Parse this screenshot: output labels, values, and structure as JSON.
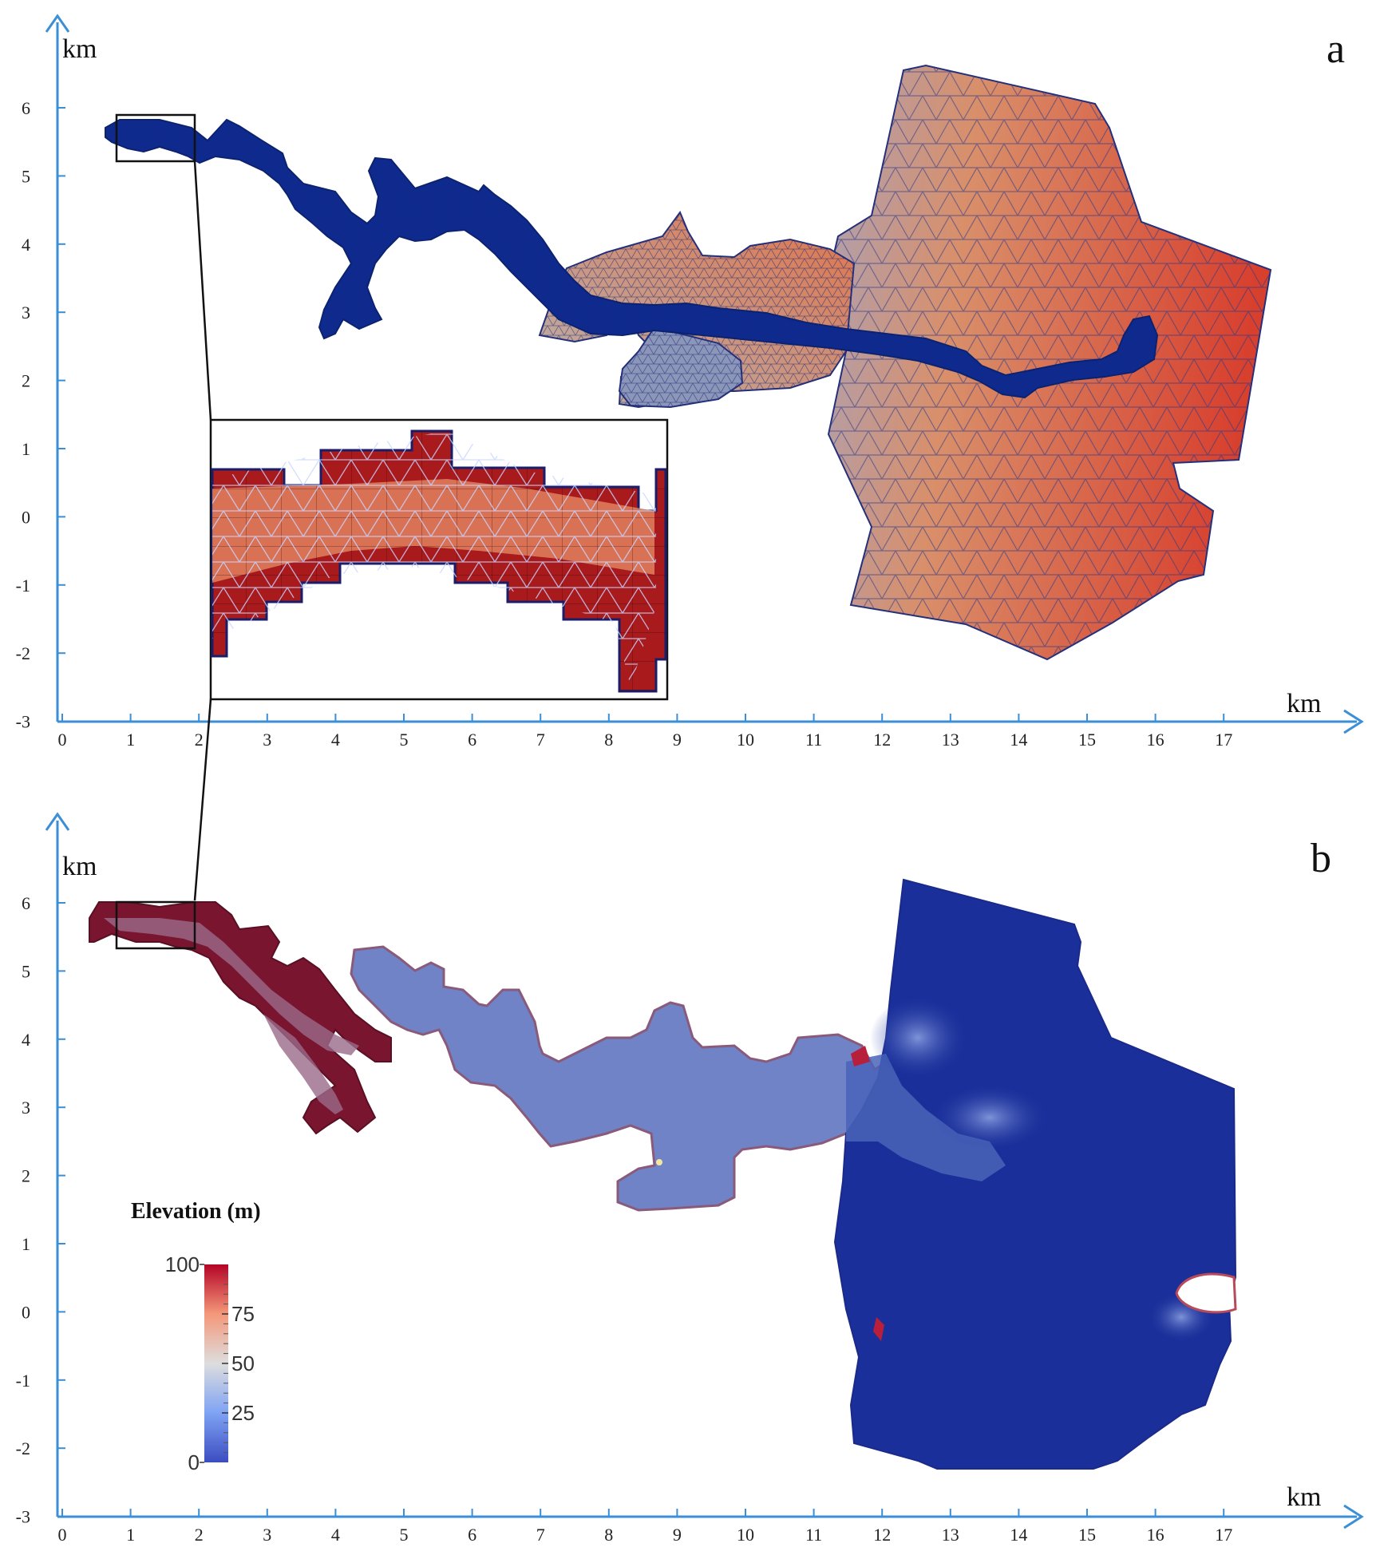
{
  "panel_a": {
    "letter": "a",
    "x_unit": "km",
    "y_unit": "km",
    "x_ticks": [
      "0",
      "1",
      "2",
      "3",
      "4",
      "5",
      "6",
      "7",
      "8",
      "9",
      "10",
      "11",
      "12",
      "13",
      "14",
      "15",
      "16",
      "17"
    ],
    "y_ticks": [
      "6",
      "5",
      "4",
      "3",
      "2",
      "1",
      "0",
      "-1",
      "-2",
      "-3"
    ]
  },
  "panel_b": {
    "letter": "b",
    "x_unit": "km",
    "y_unit": "km",
    "x_ticks": [
      "0",
      "1",
      "2",
      "3",
      "4",
      "5",
      "6",
      "7",
      "8",
      "9",
      "10",
      "11",
      "12",
      "13",
      "14",
      "15",
      "16",
      "17"
    ],
    "y_ticks": [
      "6",
      "5",
      "4",
      "3",
      "2",
      "1",
      "0",
      "-1",
      "-2",
      "-3"
    ]
  },
  "colorbar": {
    "title": "Elevation (m)",
    "labels": [
      "100",
      "75",
      "50",
      "25",
      "0"
    ],
    "range": [
      0,
      100
    ],
    "colors": [
      "#3b4cc0",
      "#dddddd",
      "#b40426"
    ]
  },
  "colors": {
    "axis": "#3a8fd6",
    "mesh_deep": "#0d2a8c",
    "mesh_high": "#d8402e",
    "mesh_low": "#b8a9a0",
    "inset_fill": "#a81a1c",
    "elev_low": "#1a2f9a",
    "elev_mid": "#5570c8",
    "elev_high": "#7a1530"
  }
}
